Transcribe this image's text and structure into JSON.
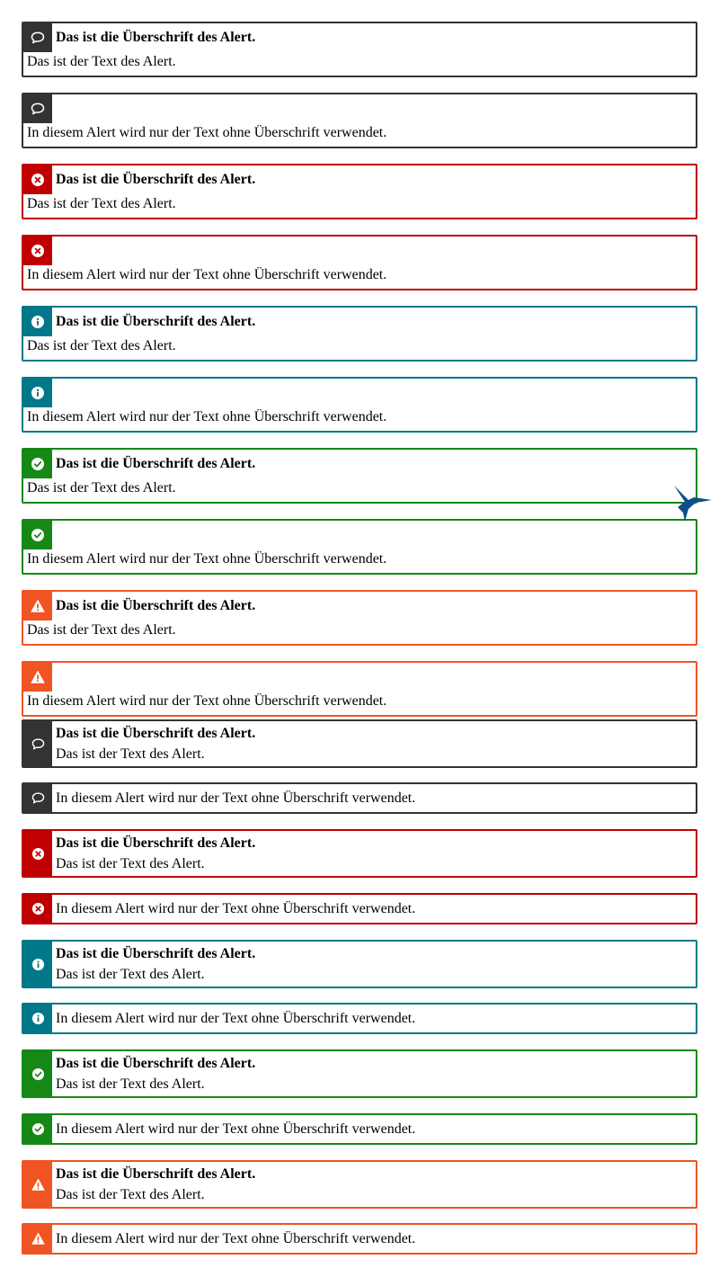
{
  "colors": {
    "neutral": "#333333",
    "error": "#c00000",
    "info": "#00788a",
    "success": "#168816",
    "warning": "#f05423"
  },
  "section_a": [
    {
      "variant": "neutral",
      "icon": "speech-bubble-icon",
      "heading": "Das ist die Überschrift des Alert.",
      "text": "Das ist der Text des Alert."
    },
    {
      "variant": "neutral",
      "icon": "speech-bubble-icon",
      "heading": "",
      "text": "In diesem Alert wird nur der Text ohne Überschrift verwendet."
    },
    {
      "variant": "error",
      "icon": "error-circle-icon",
      "heading": "Das ist die Überschrift des Alert.",
      "text": "Das ist der Text des Alert."
    },
    {
      "variant": "error",
      "icon": "error-circle-icon",
      "heading": "",
      "text": "In diesem Alert wird nur der Text ohne Überschrift verwendet."
    },
    {
      "variant": "info",
      "icon": "info-circle-icon",
      "heading": "Das ist die Überschrift des Alert.",
      "text": "Das ist der Text des Alert."
    },
    {
      "variant": "info",
      "icon": "info-circle-icon",
      "heading": "",
      "text": "In diesem Alert wird nur der Text ohne Überschrift verwendet."
    },
    {
      "variant": "success",
      "icon": "check-circle-icon",
      "heading": "Das ist die Überschrift des Alert.",
      "text": "Das ist der Text des Alert."
    },
    {
      "variant": "success",
      "icon": "check-circle-icon",
      "heading": "",
      "text": "In diesem Alert wird nur der Text ohne Überschrift verwendet."
    },
    {
      "variant": "warning",
      "icon": "warning-triangle-icon",
      "heading": "Das ist die Überschrift des Alert.",
      "text": "Das ist der Text des Alert."
    },
    {
      "variant": "warning",
      "icon": "warning-triangle-icon",
      "heading": "",
      "text": "In diesem Alert wird nur der Text ohne Überschrift verwendet."
    }
  ],
  "section_b": [
    {
      "variant": "neutral",
      "icon": "speech-bubble-icon",
      "heading": "Das ist die Überschrift des Alert.",
      "text": "Das ist der Text des Alert."
    },
    {
      "variant": "neutral",
      "icon": "speech-bubble-icon",
      "heading": "",
      "text": "In diesem Alert wird nur der Text ohne Überschrift verwendet."
    },
    {
      "variant": "error",
      "icon": "error-circle-icon",
      "heading": "Das ist die Überschrift des Alert.",
      "text": "Das ist der Text des Alert."
    },
    {
      "variant": "error",
      "icon": "error-circle-icon",
      "heading": "",
      "text": "In diesem Alert wird nur der Text ohne Überschrift verwendet."
    },
    {
      "variant": "info",
      "icon": "info-circle-icon",
      "heading": "Das ist die Überschrift des Alert.",
      "text": "Das ist der Text des Alert."
    },
    {
      "variant": "info",
      "icon": "info-circle-icon",
      "heading": "",
      "text": "In diesem Alert wird nur der Text ohne Überschrift verwendet."
    },
    {
      "variant": "success",
      "icon": "check-circle-icon",
      "heading": "Das ist die Überschrift des Alert.",
      "text": "Das ist der Text des Alert."
    },
    {
      "variant": "success",
      "icon": "check-circle-icon",
      "heading": "",
      "text": "In diesem Alert wird nur der Text ohne Überschrift verwendet."
    },
    {
      "variant": "warning",
      "icon": "warning-triangle-icon",
      "heading": "Das ist die Überschrift des Alert.",
      "text": "Das ist der Text des Alert."
    },
    {
      "variant": "warning",
      "icon": "warning-triangle-icon",
      "heading": "",
      "text": "In diesem Alert wird nur der Text ohne Überschrift verwendet."
    }
  ],
  "decoration": {
    "icon": "hummingbird-logo-icon",
    "color": "#0b4f8a"
  }
}
